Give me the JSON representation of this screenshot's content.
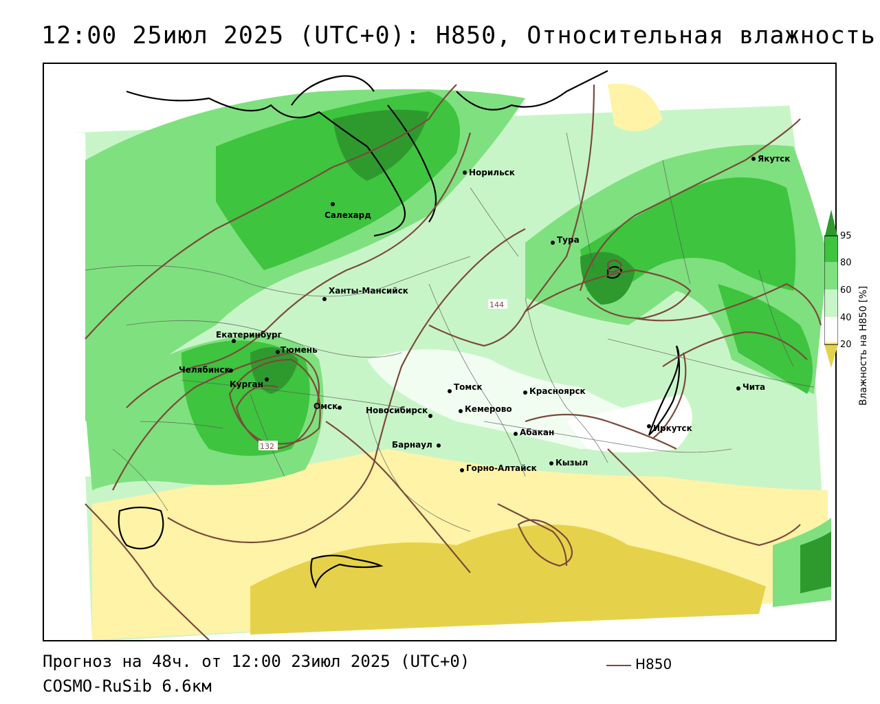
{
  "header": {
    "title": "12:00 25июл 2025 (UTC+0): H850, Относительная влажность"
  },
  "footer": {
    "forecast": "Прогноз на 48ч. от 12:00 23июл 2025 (UTC+0)",
    "model": "COSMO-RuSib 6.6км",
    "legend_line_label": "H850"
  },
  "colorbar": {
    "title": "Влажность на H850 [%]",
    "ticks": [
      "95",
      "80",
      "60",
      "40",
      "20"
    ],
    "colors": [
      "#2e9a2e",
      "#3ec43e",
      "#7fe07f",
      "#c8f5c8",
      "#ffffff",
      "#fff3a8",
      "#e6d24a"
    ]
  },
  "colors": {
    "contour": "#7a4a3a",
    "boundary": "#555555",
    "coast": "#000000"
  },
  "cities": [
    {
      "name": "Салехард"
    },
    {
      "name": "Норильск"
    },
    {
      "name": "Якутск"
    },
    {
      "name": "Тура"
    },
    {
      "name": "Ханты-Мансийск"
    },
    {
      "name": "Екатеринбург"
    },
    {
      "name": "Тюмень"
    },
    {
      "name": "Челябинск"
    },
    {
      "name": "Курган"
    },
    {
      "name": "Омск"
    },
    {
      "name": "Новосибирск"
    },
    {
      "name": "Томск"
    },
    {
      "name": "Кемерово"
    },
    {
      "name": "Красноярск"
    },
    {
      "name": "Барнаул"
    },
    {
      "name": "Абакан"
    },
    {
      "name": "Кызыл"
    },
    {
      "name": "Горно-Алтайск"
    },
    {
      "name": "Иркутск"
    },
    {
      "name": "Чита"
    }
  ],
  "contour_labels": [
    "144",
    "132"
  ]
}
